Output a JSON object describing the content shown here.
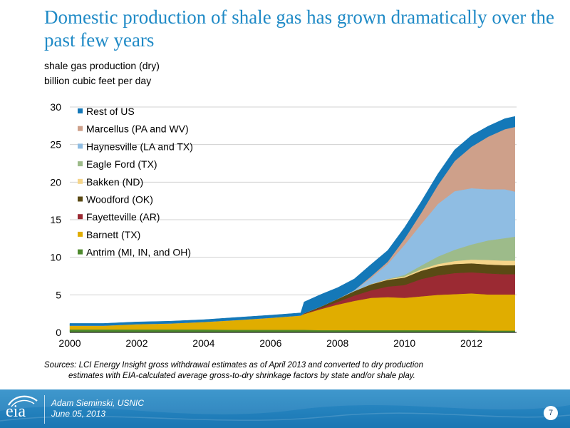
{
  "slide": {
    "title": "Domestic production of shale gas has grown dramatically over the past few years",
    "subtitle_line1": "shale gas production (dry)",
    "subtitle_line2": "billion cubic feet per day",
    "sources_line1": "Sources:  LCI Energy Insight gross withdrawal estimates as of April 2013 and converted to dry production",
    "sources_line2": "estimates with EIA-calculated average gross-to-dry shrinkage factors by state and/or shale play."
  },
  "footer": {
    "logo_text": "eia",
    "presenter": "Adam Sieminski, USNIC",
    "date": "June 05, 2013",
    "page_number": "7"
  },
  "chart_data": {
    "type": "area",
    "stacked": true,
    "xlim": [
      2000,
      2013.35
    ],
    "ylim": [
      0,
      30
    ],
    "x_ticks": [
      "2000",
      "2002",
      "2004",
      "2006",
      "2008",
      "2010",
      "2012"
    ],
    "y_ticks": [
      "0",
      "5",
      "10",
      "15",
      "20",
      "25",
      "30"
    ],
    "grid": "horizontal",
    "legend_position": "top-left",
    "x": [
      2000,
      2001,
      2002,
      2003,
      2004,
      2005,
      2006,
      2006.9,
      2007,
      2007.5,
      2008,
      2008.5,
      2009,
      2009.5,
      2010,
      2010.5,
      2011,
      2011.5,
      2012,
      2012.5,
      2013,
      2013.3
    ],
    "series": [
      {
        "name": "Antrim (MI, IN, and OH)",
        "color": "#4e8a2e",
        "values": [
          0.4,
          0.4,
          0.4,
          0.4,
          0.4,
          0.35,
          0.35,
          0.35,
          0.35,
          0.3,
          0.3,
          0.3,
          0.3,
          0.3,
          0.3,
          0.3,
          0.3,
          0.3,
          0.3,
          0.25,
          0.25,
          0.25
        ]
      },
      {
        "name": "Barnett (TX)",
        "color": "#e0ad00",
        "values": [
          0.5,
          0.5,
          0.7,
          0.8,
          1.0,
          1.3,
          1.6,
          1.9,
          2.1,
          2.8,
          3.4,
          3.9,
          4.3,
          4.4,
          4.3,
          4.5,
          4.7,
          4.8,
          4.9,
          4.8,
          4.8,
          4.8
        ]
      },
      {
        "name": "Fayetteville (AR)",
        "color": "#9b2a33",
        "values": [
          0,
          0,
          0,
          0,
          0,
          0,
          0,
          0,
          0.05,
          0.15,
          0.35,
          0.7,
          1.0,
          1.4,
          1.7,
          2.3,
          2.6,
          2.8,
          2.8,
          2.8,
          2.7,
          2.7
        ]
      },
      {
        "name": "Woodford (OK)",
        "color": "#5a4a14",
        "values": [
          0,
          0,
          0,
          0,
          0,
          0,
          0,
          0,
          0.05,
          0.2,
          0.4,
          0.6,
          0.8,
          0.9,
          1.0,
          1.1,
          1.2,
          1.2,
          1.2,
          1.2,
          1.2,
          1.2
        ]
      },
      {
        "name": "Bakken (ND)",
        "color": "#f5d58a",
        "values": [
          0,
          0,
          0,
          0,
          0,
          0,
          0,
          0,
          0,
          0,
          0,
          0.02,
          0.05,
          0.1,
          0.15,
          0.2,
          0.3,
          0.4,
          0.5,
          0.6,
          0.6,
          0.6
        ]
      },
      {
        "name": "Eagle Ford (TX)",
        "color": "#9dbb8a",
        "values": [
          0,
          0,
          0,
          0,
          0,
          0,
          0,
          0,
          0,
          0,
          0,
          0,
          0,
          0.02,
          0.2,
          0.5,
          1.0,
          1.5,
          2.0,
          2.6,
          3.0,
          3.2
        ]
      },
      {
        "name": "Haynesville (LA and TX)",
        "color": "#8fbde3",
        "values": [
          0,
          0,
          0,
          0,
          0,
          0,
          0,
          0,
          0,
          0,
          0,
          0.1,
          0.8,
          2.0,
          4.0,
          5.5,
          7.0,
          7.8,
          7.5,
          6.8,
          6.5,
          6.0
        ]
      },
      {
        "name": "Marcellus (PA and WV)",
        "color": "#cea08a",
        "values": [
          0,
          0,
          0,
          0,
          0,
          0,
          0,
          0,
          0,
          0,
          0,
          0,
          0.2,
          0.3,
          0.8,
          1.5,
          2.5,
          4.0,
          5.5,
          7.0,
          8.0,
          8.6
        ]
      },
      {
        "name": "Rest of US",
        "color": "#1478b8",
        "values": [
          0.3,
          0.3,
          0.3,
          0.3,
          0.3,
          0.35,
          0.35,
          0.35,
          1.5,
          1.6,
          1.5,
          1.5,
          1.6,
          1.5,
          1.5,
          1.5,
          1.5,
          1.5,
          1.5,
          1.4,
          1.4,
          1.4
        ]
      }
    ]
  }
}
